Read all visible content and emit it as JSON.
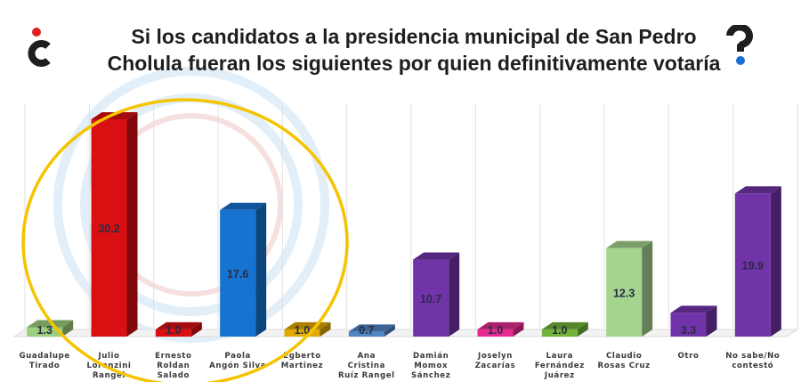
{
  "title_line1": "Si los candidatos a la presidencia municipal de San Pedro",
  "title_line2": "Cholula fueran los siguientes por quien definitivamente votaría",
  "logo_left_icon": "inverted-question-mark-logo-icon",
  "logo_right_icon": "question-mark-logo-icon",
  "colors": {
    "accent_red": "#e02020",
    "accent_blue": "#1a6fd1",
    "highlight_circle": "#f5c400"
  },
  "chart_data": {
    "type": "bar",
    "categories": [
      [
        "Guadalupe",
        "Tirado"
      ],
      [
        "Julio",
        "Lorenzini",
        "Rangel"
      ],
      [
        "Ernesto",
        "Roldan",
        "Salado"
      ],
      [
        "Paola",
        "Angón Silva"
      ],
      [
        "Egberto",
        "Martinez"
      ],
      [
        "Ana",
        "Cristina",
        "Ruíz Rangel"
      ],
      [
        "Damián",
        "Momox",
        "Sánchez"
      ],
      [
        "Joselyn",
        "Zacarías"
      ],
      [
        "Laura",
        "Fernández",
        "Juárez"
      ],
      [
        "Claudio",
        "Rosas Cruz"
      ],
      [
        "Otro"
      ],
      [
        "No sabe/No",
        "contestó"
      ]
    ],
    "values": [
      1.3,
      30.2,
      1.0,
      17.6,
      1.0,
      0.7,
      10.7,
      1.0,
      1.0,
      12.3,
      3.3,
      19.9
    ],
    "value_labels": [
      "1.3",
      "30.2",
      "1.0",
      "17.6",
      "1.0",
      "0.7",
      "10.7",
      "1.0",
      "1.0",
      "12.3",
      "3.3",
      "19.9"
    ],
    "bar_colors": [
      "#9ccf7e",
      "#d90f12",
      "#d90f12",
      "#1673d0",
      "#e3a903",
      "#4e86c5",
      "#7134a8",
      "#e72a93",
      "#72b43a",
      "#a4d48e",
      "#7134a8",
      "#7134a8"
    ],
    "ylim": [
      0,
      34
    ],
    "grid": true,
    "legend": "none"
  }
}
